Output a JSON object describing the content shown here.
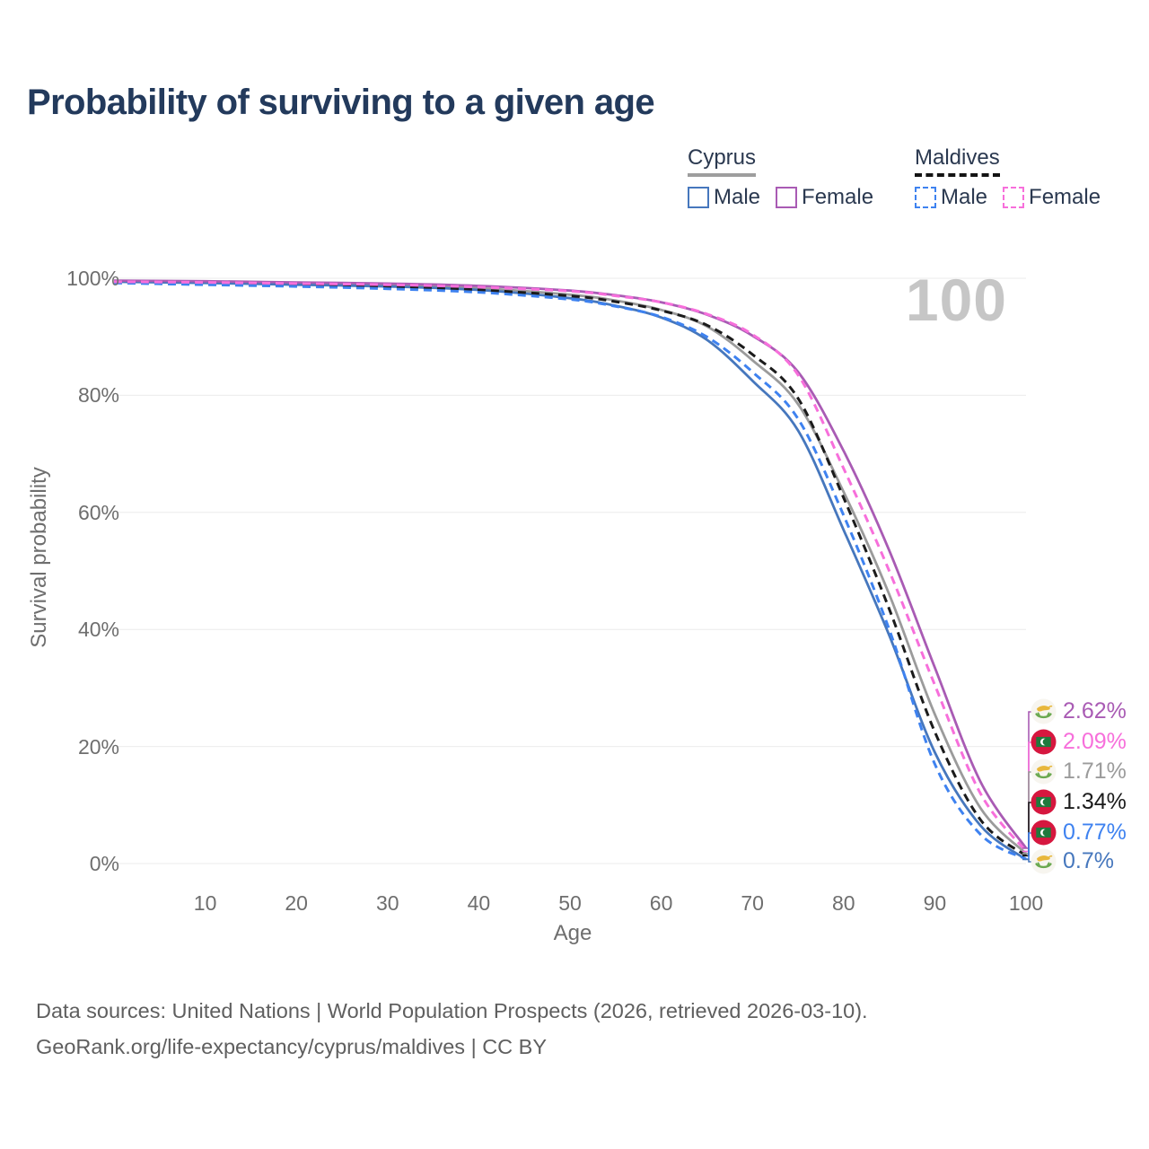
{
  "header": {
    "title": "Probability of surviving to a given age"
  },
  "legend": {
    "groups": [
      {
        "name": "Cyprus",
        "line_style": "solid",
        "items": [
          {
            "label": "Male",
            "color": "#4677bd"
          },
          {
            "label": "Female",
            "color": "#a95bb4"
          }
        ]
      },
      {
        "name": "Maldives",
        "line_style": "dashed",
        "items": [
          {
            "label": "Male",
            "color": "#3e82f0"
          },
          {
            "label": "Female",
            "color": "#f76fdb"
          }
        ]
      }
    ]
  },
  "chart_data": {
    "type": "line",
    "title": "Probability of surviving to a given age",
    "age_indicator": "100",
    "x": {
      "label": "Age",
      "range": [
        0,
        100
      ],
      "ticks": [
        10,
        20,
        30,
        40,
        50,
        60,
        70,
        80,
        90,
        100
      ]
    },
    "y": {
      "label": "Survival probability",
      "range_pct": [
        0,
        100
      ],
      "ticks": [
        {
          "label": "100%",
          "pct": 100
        },
        {
          "label": "80%",
          "pct": 80
        },
        {
          "label": "60%",
          "pct": 60
        },
        {
          "label": "40%",
          "pct": 40
        },
        {
          "label": "20%",
          "pct": 20
        },
        {
          "label": "0%",
          "pct": 0
        }
      ]
    },
    "ages": [
      0,
      10,
      20,
      30,
      40,
      50,
      55,
      60,
      65,
      70,
      75,
      80,
      85,
      90,
      95,
      100
    ],
    "series": [
      {
        "id": "cyprus-female",
        "country": "Cyprus",
        "sex": "Female",
        "flag": "cy",
        "color": "#a95bb4",
        "dashed": false,
        "end_label": "2.62%",
        "values": [
          99.6,
          99.5,
          99.3,
          99.1,
          98.7,
          97.9,
          97.1,
          95.9,
          93.8,
          90.2,
          84.0,
          70.5,
          53.5,
          33.5,
          14.0,
          2.62
        ]
      },
      {
        "id": "maldives-female",
        "country": "Maldives",
        "sex": "Female",
        "flag": "mv",
        "color": "#f76fdb",
        "dashed": true,
        "end_label": "2.09%",
        "values": [
          99.4,
          99.3,
          99.1,
          98.9,
          98.5,
          97.8,
          97.0,
          95.9,
          93.9,
          90.4,
          83.5,
          67.5,
          50.0,
          30.5,
          12.0,
          2.09
        ]
      },
      {
        "id": "cyprus-all",
        "country": "Cyprus",
        "sex": "Both",
        "flag": "cy",
        "color": "#9b9b9b",
        "dashed": false,
        "end_label": "1.71%",
        "values": [
          99.5,
          99.3,
          99.1,
          98.8,
          98.3,
          97.2,
          96.2,
          94.6,
          91.8,
          86.0,
          78.5,
          63.5,
          46.0,
          25.5,
          9.5,
          1.71
        ]
      },
      {
        "id": "maldives-all",
        "country": "Maldives",
        "sex": "Both",
        "flag": "mv",
        "color": "#1b1b1b",
        "dashed": true,
        "end_label": "1.34%",
        "values": [
          99.3,
          99.1,
          98.8,
          98.5,
          98.0,
          97.0,
          96.0,
          94.5,
          92.0,
          87.0,
          79.5,
          62.5,
          43.5,
          22.5,
          7.5,
          1.34
        ]
      },
      {
        "id": "maldives-male",
        "country": "Maldives",
        "sex": "Male",
        "flag": "mv",
        "color": "#3e82f0",
        "dashed": true,
        "end_label": "0.77%",
        "values": [
          99.2,
          98.9,
          98.6,
          98.2,
          97.6,
          96.4,
          95.2,
          93.4,
          90.0,
          84.0,
          76.0,
          59.5,
          40.0,
          17.0,
          5.0,
          0.77
        ]
      },
      {
        "id": "cyprus-male",
        "country": "Cyprus",
        "sex": "Male",
        "flag": "cy",
        "color": "#4677bd",
        "dashed": false,
        "end_label": "0.7%",
        "values": [
          99.4,
          99.2,
          98.9,
          98.6,
          98.0,
          96.6,
          95.3,
          93.3,
          89.5,
          82.5,
          74.0,
          57.0,
          39.0,
          19.0,
          6.5,
          0.7
        ]
      }
    ]
  },
  "footer": {
    "line1": "Data sources: United Nations | World Population Prospects (2026, retrieved 2026-03-10).",
    "line2": "GeoRank.org/life-expectancy/cyprus/maldives | CC BY"
  }
}
